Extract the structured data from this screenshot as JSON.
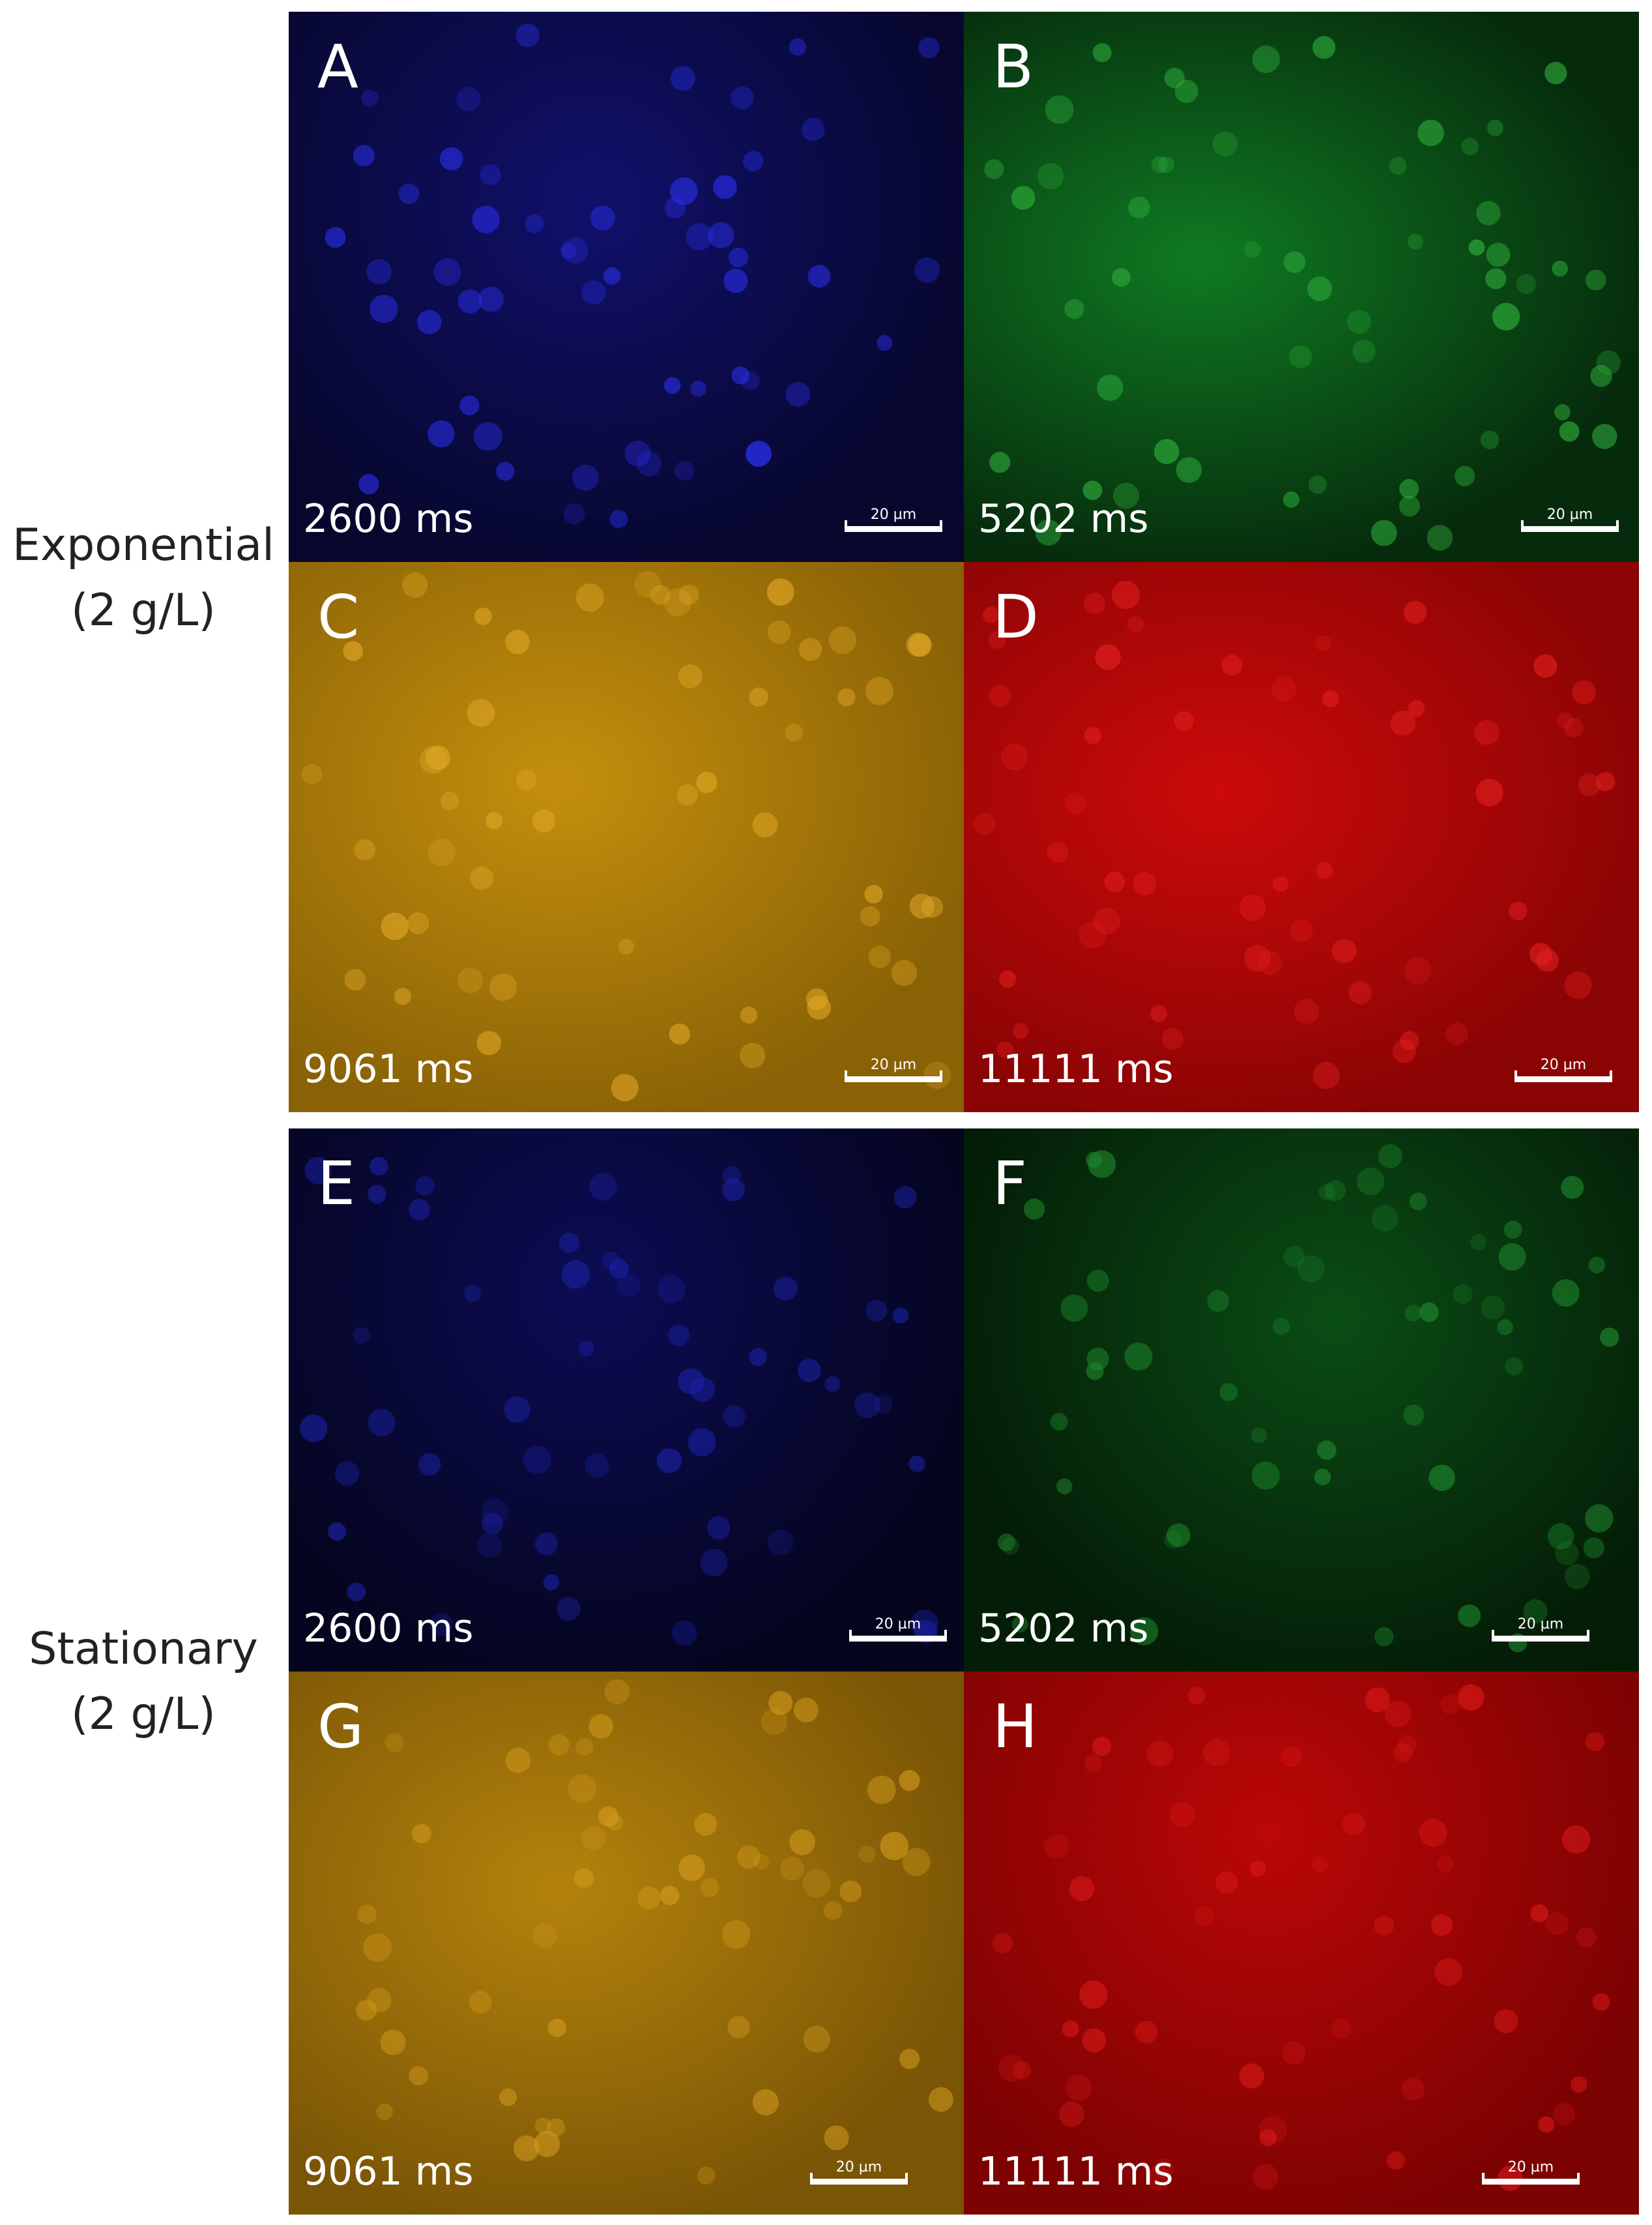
{
  "row_labels": [
    {
      "line1": "Exponential",
      "line2": "(2 g/L)"
    },
    {
      "line1": "Stationary",
      "line2": "(2 g/L)"
    }
  ],
  "scale_bar_label": "20 µm",
  "panels": [
    {
      "letter": "A",
      "exposure": "2600 ms",
      "base": "#07072e",
      "glow": "#10106b",
      "cell": "#2a2ee8"
    },
    {
      "letter": "B",
      "exposure": "5202 ms",
      "base": "#062a0c",
      "glow": "#0f7a22",
      "cell": "#2fb03c"
    },
    {
      "letter": "C",
      "exposure": "9061 ms",
      "base": "#8a6206",
      "glow": "#c48f0d",
      "cell": "#e0a826"
    },
    {
      "letter": "D",
      "exposure": "11111 ms",
      "base": "#8a0404",
      "glow": "#cc0a0a",
      "cell": "#e42020"
    },
    {
      "letter": "E",
      "exposure": "2600 ms",
      "base": "#05051f",
      "glow": "#0c0c55",
      "cell": "#1c22a8"
    },
    {
      "letter": "F",
      "exposure": "5202 ms",
      "base": "#041d07",
      "glow": "#0a4d15",
      "cell": "#1f8a2d"
    },
    {
      "letter": "G",
      "exposure": "9061 ms",
      "base": "#7a5505",
      "glow": "#b4830c",
      "cell": "#d49c1e"
    },
    {
      "letter": "H",
      "exposure": "11111 ms",
      "base": "#7d0202",
      "glow": "#bb0707",
      "cell": "#d81818"
    }
  ]
}
